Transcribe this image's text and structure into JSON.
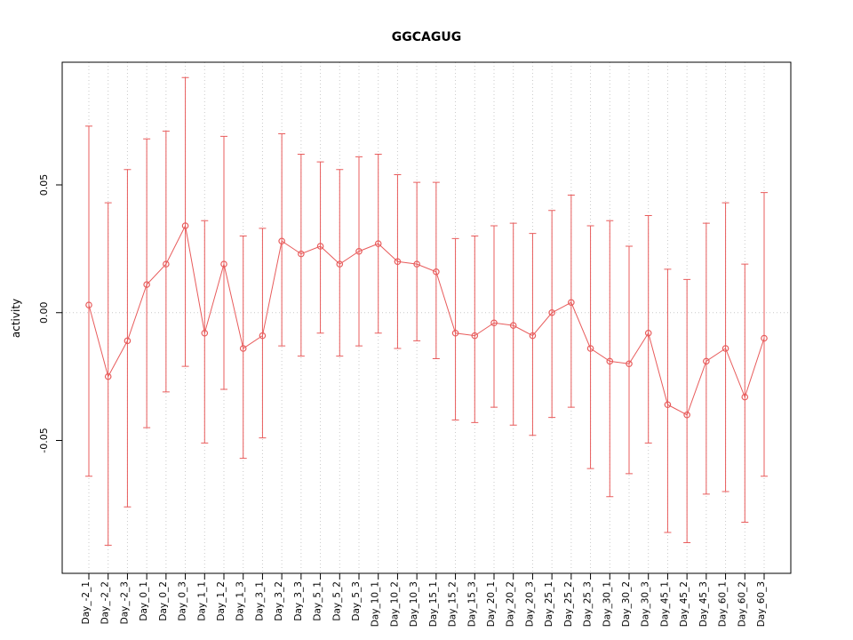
{
  "chart_data": {
    "type": "line",
    "title": "GGCAGUG",
    "xlabel": "",
    "ylabel": "activity",
    "ylim": [
      -0.102,
      0.098
    ],
    "yticks": [
      -0.05,
      0.0,
      0.05
    ],
    "grid": "dotted vertical line at each category; dotted horizontal line at y=0",
    "legend": "none",
    "marker": "open-circle",
    "series_color": "#e85c5c",
    "grid_color": "#c9c9c9",
    "box_color": "#000000",
    "categories": [
      "Day_-2_1",
      "Day_-2_2",
      "Day_-2_3",
      "Day_0_1",
      "Day_0_2",
      "Day_0_3",
      "Day_1_1",
      "Day_1_2",
      "Day_1_3",
      "Day_3_1",
      "Day_3_2",
      "Day_3_3",
      "Day_5_1",
      "Day_5_2",
      "Day_5_3",
      "Day_10_1",
      "Day_10_2",
      "Day_10_3",
      "Day_15_1",
      "Day_15_2",
      "Day_15_3",
      "Day_20_1",
      "Day_20_2",
      "Day_20_3",
      "Day_25_1",
      "Day_25_2",
      "Day_25_3",
      "Day_30_1",
      "Day_30_2",
      "Day_30_3",
      "Day_45_1",
      "Day_45_2",
      "Day_45_3",
      "Day_60_1",
      "Day_60_2",
      "Day_60_3"
    ],
    "values": [
      0.003,
      -0.025,
      -0.011,
      0.011,
      0.019,
      0.034,
      -0.008,
      0.019,
      -0.014,
      -0.009,
      0.028,
      0.023,
      0.026,
      0.019,
      0.024,
      0.027,
      0.02,
      0.019,
      0.016,
      -0.008,
      -0.009,
      -0.004,
      -0.005,
      -0.009,
      0.0,
      0.004,
      -0.014,
      -0.019,
      -0.02,
      -0.008,
      -0.036,
      -0.04,
      -0.019,
      -0.014,
      -0.033,
      -0.01
    ],
    "error_high": [
      0.073,
      0.043,
      0.056,
      0.068,
      0.071,
      0.092,
      0.036,
      0.069,
      0.03,
      0.033,
      0.07,
      0.062,
      0.059,
      0.056,
      0.061,
      0.062,
      0.054,
      0.051,
      0.051,
      0.029,
      0.03,
      0.034,
      0.035,
      0.031,
      0.04,
      0.046,
      0.034,
      0.036,
      0.026,
      0.038,
      0.017,
      0.013,
      0.035,
      0.043,
      0.019,
      0.047
    ],
    "error_low": [
      -0.064,
      -0.091,
      -0.076,
      -0.045,
      -0.031,
      -0.021,
      -0.051,
      -0.03,
      -0.057,
      -0.049,
      -0.013,
      -0.017,
      -0.008,
      -0.017,
      -0.013,
      -0.008,
      -0.014,
      -0.011,
      -0.018,
      -0.042,
      -0.043,
      -0.037,
      -0.044,
      -0.048,
      -0.041,
      -0.037,
      -0.061,
      -0.072,
      -0.063,
      -0.051,
      -0.086,
      -0.09,
      -0.071,
      -0.07,
      -0.082,
      -0.064
    ]
  }
}
